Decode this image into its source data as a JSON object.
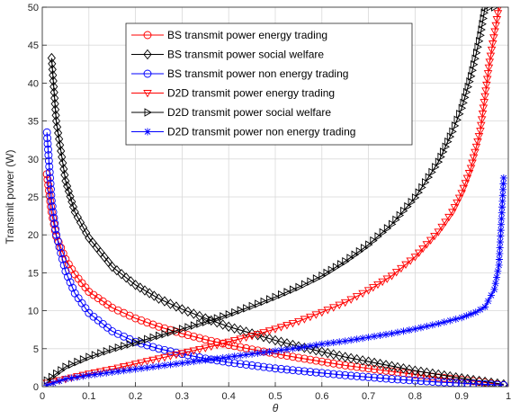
{
  "chart_data": {
    "type": "line",
    "xlabel": "θ",
    "ylabel": "Transmit power (W)",
    "xlim": [
      0,
      1
    ],
    "ylim": [
      0,
      50
    ],
    "xticks": [
      "0",
      "0.1",
      "0.2",
      "0.3",
      "0.4",
      "0.5",
      "0.6",
      "0.7",
      "0.8",
      "0.9",
      "1"
    ],
    "yticks": [
      "0",
      "5",
      "10",
      "15",
      "20",
      "25",
      "30",
      "35",
      "40",
      "45",
      "50"
    ],
    "grid": true,
    "legend_position": "top-center",
    "series": [
      {
        "name": "BS transmit power energy trading",
        "color": "#ff0000",
        "marker": "circle",
        "x": [
          0.01,
          0.02,
          0.03,
          0.05,
          0.07,
          0.1,
          0.15,
          0.2,
          0.25,
          0.3,
          0.35,
          0.4,
          0.45,
          0.5,
          0.55,
          0.6,
          0.65,
          0.7,
          0.75,
          0.8,
          0.85,
          0.9,
          0.95,
          0.99
        ],
        "y": [
          28,
          23,
          19.8,
          16.8,
          14.8,
          12.5,
          10.4,
          9.0,
          7.9,
          7.0,
          6.2,
          5.5,
          4.9,
          4.35,
          3.8,
          3.3,
          2.8,
          2.4,
          2.0,
          1.6,
          1.2,
          0.9,
          0.55,
          0.2
        ]
      },
      {
        "name": "BS transmit power social welfare",
        "color": "#000000",
        "marker": "diamond",
        "x": [
          0.02,
          0.03,
          0.05,
          0.07,
          0.1,
          0.15,
          0.2,
          0.25,
          0.3,
          0.35,
          0.4,
          0.45,
          0.5,
          0.55,
          0.6,
          0.65,
          0.7,
          0.75,
          0.8,
          0.85,
          0.9,
          0.95,
          0.99
        ],
        "y": [
          43.3,
          35,
          27.1,
          23.0,
          19.6,
          15.8,
          13.4,
          11.6,
          10.2,
          9.0,
          7.9,
          7.0,
          6.1,
          5.3,
          4.6,
          3.9,
          3.3,
          2.7,
          2.1,
          1.6,
          1.1,
          0.65,
          0.3
        ]
      },
      {
        "name": "BS transmit power non energy trading",
        "color": "#0000ff",
        "marker": "circle",
        "x": [
          0.01,
          0.02,
          0.03,
          0.05,
          0.07,
          0.1,
          0.15,
          0.2,
          0.25,
          0.3,
          0.35,
          0.4,
          0.45,
          0.5,
          0.55,
          0.6,
          0.65,
          0.7,
          0.75,
          0.8,
          0.85,
          0.9,
          0.95,
          0.99
        ],
        "y": [
          33.5,
          24.5,
          20,
          15.2,
          12.3,
          9.7,
          7.3,
          5.9,
          5.0,
          4.3,
          3.7,
          3.2,
          2.8,
          2.4,
          2.1,
          1.8,
          1.5,
          1.25,
          1.0,
          0.8,
          0.6,
          0.45,
          0.3,
          0.2
        ]
      },
      {
        "name": "D2D transmit power energy trading",
        "color": "#ff0000",
        "marker": "triangle-down",
        "x": [
          0.01,
          0.05,
          0.1,
          0.15,
          0.2,
          0.25,
          0.3,
          0.35,
          0.4,
          0.45,
          0.5,
          0.55,
          0.6,
          0.65,
          0.7,
          0.75,
          0.8,
          0.85,
          0.88,
          0.9,
          0.92,
          0.94,
          0.96,
          0.98
        ],
        "y": [
          0.5,
          1.0,
          1.7,
          2.3,
          3.0,
          3.7,
          4.4,
          5.1,
          5.9,
          6.7,
          7.6,
          8.6,
          9.8,
          11.1,
          12.7,
          14.6,
          17.1,
          20.4,
          23.0,
          25.5,
          28.8,
          33.7,
          42.8,
          50
        ]
      },
      {
        "name": "D2D transmit power social welfare",
        "color": "#000000",
        "marker": "triangle-right",
        "x": [
          0.01,
          0.05,
          0.1,
          0.15,
          0.2,
          0.25,
          0.3,
          0.35,
          0.4,
          0.45,
          0.5,
          0.55,
          0.6,
          0.65,
          0.7,
          0.75,
          0.8,
          0.85,
          0.88,
          0.9,
          0.92,
          0.94,
          0.95,
          0.97
        ],
        "y": [
          0.8,
          2.6,
          3.9,
          4.9,
          5.8,
          6.7,
          7.6,
          8.5,
          9.5,
          10.6,
          11.8,
          13.1,
          14.6,
          16.5,
          18.7,
          21.4,
          24.9,
          29.6,
          33.6,
          36.7,
          40.9,
          46.3,
          50,
          50
        ]
      },
      {
        "name": "D2D transmit power non energy trading",
        "color": "#0000ff",
        "marker": "star",
        "x": [
          0.01,
          0.05,
          0.1,
          0.15,
          0.2,
          0.25,
          0.3,
          0.35,
          0.4,
          0.45,
          0.5,
          0.55,
          0.6,
          0.65,
          0.7,
          0.75,
          0.8,
          0.85,
          0.9,
          0.93,
          0.95,
          0.97,
          0.98,
          0.99
        ],
        "y": [
          0.2,
          1.0,
          1.5,
          1.9,
          2.3,
          2.7,
          3.1,
          3.5,
          3.9,
          4.3,
          4.7,
          5.1,
          5.6,
          6.0,
          6.5,
          7.0,
          7.6,
          8.3,
          9.1,
          9.8,
          10.5,
          12.8,
          16,
          27.5
        ]
      }
    ]
  }
}
